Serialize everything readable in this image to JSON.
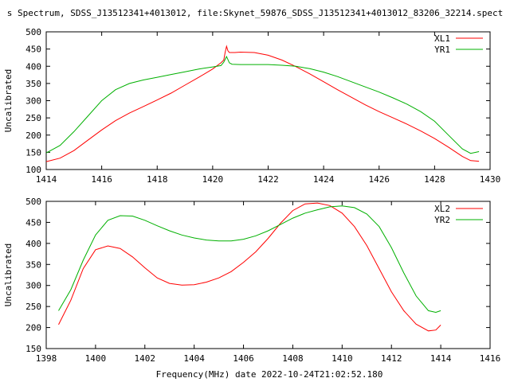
{
  "header": {
    "title": "s Spectrum, SDSS_J13512341+4013012, file:Skynet_59876_SDSS_J13512341+4013012_83206_32214.spect"
  },
  "footer": {
    "xlabel": "Frequency(MHz) date 2022-10-24T21:02:52.180"
  },
  "colors": {
    "red": "#ff0000",
    "green": "#00b000",
    "axis": "#000000"
  },
  "chart_data": [
    {
      "type": "line",
      "title": "",
      "xlabel": "",
      "ylabel": "Uncalibrated",
      "xlim": [
        1414,
        1430
      ],
      "ylim": [
        100,
        500
      ],
      "xticks": [
        1414,
        1416,
        1418,
        1420,
        1422,
        1424,
        1426,
        1428,
        1430
      ],
      "yticks": [
        100,
        150,
        200,
        250,
        300,
        350,
        400,
        450,
        500
      ],
      "grid": false,
      "legend": "top-right",
      "series": [
        {
          "name": "XL1",
          "color": "#ff0000",
          "points": [
            [
              1414.0,
              123
            ],
            [
              1414.5,
              133
            ],
            [
              1415.0,
              155
            ],
            [
              1415.5,
              185
            ],
            [
              1416.0,
              215
            ],
            [
              1416.5,
              242
            ],
            [
              1417.0,
              264
            ],
            [
              1417.5,
              283
            ],
            [
              1418.0,
              302
            ],
            [
              1418.5,
              322
            ],
            [
              1419.0,
              345
            ],
            [
              1419.5,
              368
            ],
            [
              1420.0,
              392
            ],
            [
              1420.3,
              410
            ],
            [
              1420.4,
              418
            ],
            [
              1420.45,
              440
            ],
            [
              1420.5,
              458
            ],
            [
              1420.55,
              445
            ],
            [
              1420.6,
              440
            ],
            [
              1420.8,
              440
            ],
            [
              1421.0,
              441
            ],
            [
              1421.5,
              440
            ],
            [
              1422.0,
              432
            ],
            [
              1422.5,
              418
            ],
            [
              1423.0,
              399
            ],
            [
              1423.5,
              378
            ],
            [
              1424.0,
              355
            ],
            [
              1424.5,
              332
            ],
            [
              1425.0,
              310
            ],
            [
              1425.5,
              288
            ],
            [
              1426.0,
              268
            ],
            [
              1426.5,
              250
            ],
            [
              1427.0,
              232
            ],
            [
              1427.5,
              212
            ],
            [
              1428.0,
              190
            ],
            [
              1428.5,
              165
            ],
            [
              1429.0,
              138
            ],
            [
              1429.3,
              126
            ],
            [
              1429.6,
              124
            ]
          ]
        },
        {
          "name": "YR1",
          "color": "#00b000",
          "points": [
            [
              1414.0,
              148
            ],
            [
              1414.5,
              170
            ],
            [
              1415.0,
              210
            ],
            [
              1415.5,
              255
            ],
            [
              1416.0,
              300
            ],
            [
              1416.5,
              332
            ],
            [
              1417.0,
              350
            ],
            [
              1417.5,
              360
            ],
            [
              1418.0,
              368
            ],
            [
              1418.5,
              376
            ],
            [
              1419.0,
              384
            ],
            [
              1419.5,
              392
            ],
            [
              1420.0,
              398
            ],
            [
              1420.3,
              402
            ],
            [
              1420.4,
              412
            ],
            [
              1420.5,
              428
            ],
            [
              1420.6,
              410
            ],
            [
              1420.7,
              406
            ],
            [
              1421.0,
              405
            ],
            [
              1421.5,
              405
            ],
            [
              1422.0,
              405
            ],
            [
              1422.5,
              403
            ],
            [
              1423.0,
              400
            ],
            [
              1423.5,
              393
            ],
            [
              1424.0,
              383
            ],
            [
              1424.5,
              370
            ],
            [
              1425.0,
              355
            ],
            [
              1425.5,
              340
            ],
            [
              1426.0,
              325
            ],
            [
              1426.5,
              308
            ],
            [
              1427.0,
              290
            ],
            [
              1427.5,
              268
            ],
            [
              1428.0,
              240
            ],
            [
              1428.5,
              200
            ],
            [
              1429.0,
              160
            ],
            [
              1429.3,
              147
            ],
            [
              1429.6,
              152
            ]
          ]
        }
      ]
    },
    {
      "type": "line",
      "title": "",
      "xlabel": "",
      "ylabel": "Uncalibrated",
      "xlim": [
        1398,
        1416
      ],
      "ylim": [
        150,
        500
      ],
      "xticks": [
        1398,
        1400,
        1402,
        1404,
        1406,
        1408,
        1410,
        1412,
        1414,
        1416
      ],
      "yticks": [
        150,
        200,
        250,
        300,
        350,
        400,
        450,
        500
      ],
      "grid": false,
      "legend": "top-right",
      "series": [
        {
          "name": "XL2",
          "color": "#ff0000",
          "points": [
            [
              1398.5,
              207
            ],
            [
              1399.0,
              265
            ],
            [
              1399.5,
              340
            ],
            [
              1400.0,
              385
            ],
            [
              1400.5,
              394
            ],
            [
              1401.0,
              388
            ],
            [
              1401.5,
              368
            ],
            [
              1402.0,
              342
            ],
            [
              1402.5,
              318
            ],
            [
              1403.0,
              305
            ],
            [
              1403.5,
              301
            ],
            [
              1404.0,
              302
            ],
            [
              1404.5,
              308
            ],
            [
              1405.0,
              318
            ],
            [
              1405.5,
              333
            ],
            [
              1406.0,
              355
            ],
            [
              1406.5,
              380
            ],
            [
              1407.0,
              412
            ],
            [
              1407.5,
              448
            ],
            [
              1408.0,
              478
            ],
            [
              1408.5,
              494
            ],
            [
              1409.0,
              496
            ],
            [
              1409.5,
              490
            ],
            [
              1410.0,
              472
            ],
            [
              1410.5,
              440
            ],
            [
              1411.0,
              395
            ],
            [
              1411.5,
              340
            ],
            [
              1412.0,
              285
            ],
            [
              1412.5,
              240
            ],
            [
              1413.0,
              208
            ],
            [
              1413.5,
              192
            ],
            [
              1413.8,
              194
            ],
            [
              1414.0,
              206
            ]
          ]
        },
        {
          "name": "YR2",
          "color": "#00b000",
          "points": [
            [
              1398.5,
              240
            ],
            [
              1399.0,
              290
            ],
            [
              1399.5,
              360
            ],
            [
              1400.0,
              420
            ],
            [
              1400.5,
              455
            ],
            [
              1401.0,
              466
            ],
            [
              1401.5,
              465
            ],
            [
              1402.0,
              455
            ],
            [
              1402.5,
              442
            ],
            [
              1403.0,
              430
            ],
            [
              1403.5,
              420
            ],
            [
              1404.0,
              413
            ],
            [
              1404.5,
              408
            ],
            [
              1405.0,
              406
            ],
            [
              1405.5,
              406
            ],
            [
              1406.0,
              410
            ],
            [
              1406.5,
              418
            ],
            [
              1407.0,
              430
            ],
            [
              1407.5,
              445
            ],
            [
              1408.0,
              460
            ],
            [
              1408.5,
              472
            ],
            [
              1409.0,
              480
            ],
            [
              1409.5,
              487
            ],
            [
              1410.0,
              489
            ],
            [
              1410.5,
              485
            ],
            [
              1411.0,
              470
            ],
            [
              1411.5,
              440
            ],
            [
              1412.0,
              390
            ],
            [
              1412.5,
              330
            ],
            [
              1413.0,
              275
            ],
            [
              1413.5,
              240
            ],
            [
              1413.8,
              236
            ],
            [
              1414.0,
              240
            ]
          ]
        }
      ]
    }
  ]
}
